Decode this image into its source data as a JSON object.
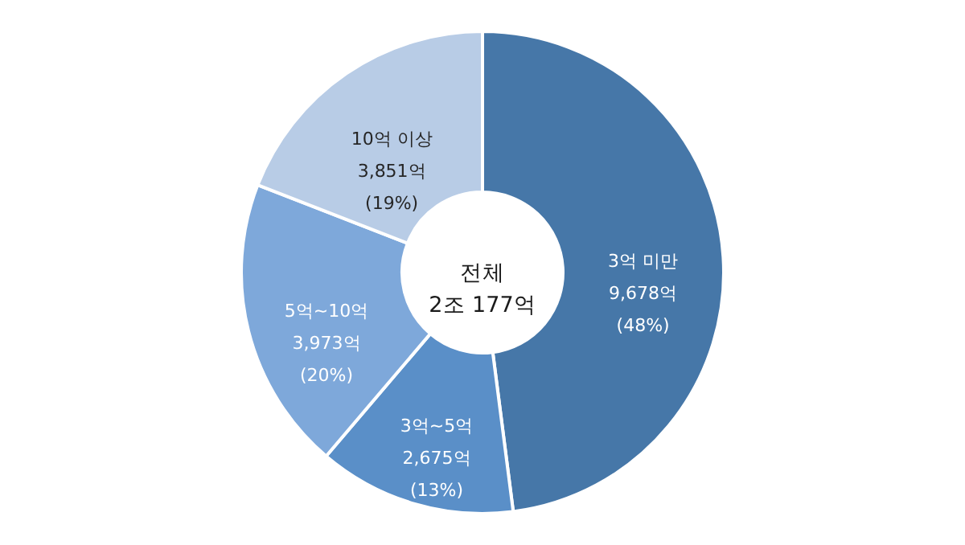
{
  "chart_data": {
    "type": "donut",
    "categories": [
      "3억 미만",
      "3억~5억",
      "5억~10억",
      "10억 이상"
    ],
    "values": [
      9678,
      2675,
      3973,
      3851
    ],
    "colors": [
      "#4677a8",
      "#5a8fc8",
      "#7ea8da",
      "#b8cce6"
    ],
    "value_labels": [
      "9,678억\n(48%)",
      "2,675억\n(13%)",
      "3,973억\n(20%)",
      "3,851억\n(19%)"
    ],
    "annotations": [
      "전체\n2조 177억"
    ]
  }
}
